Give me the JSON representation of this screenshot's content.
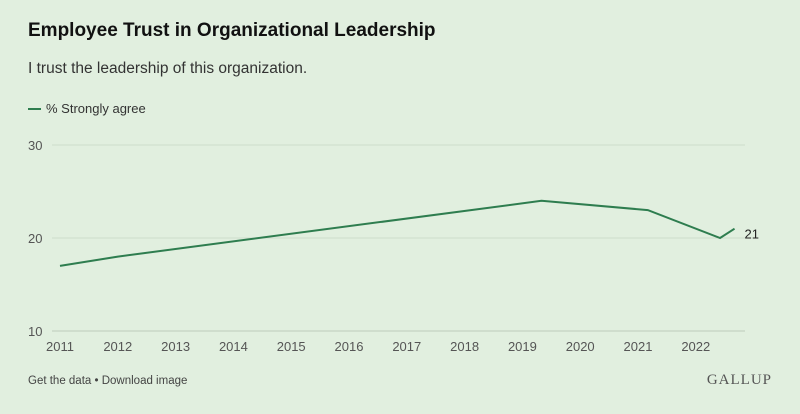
{
  "chart_data": {
    "type": "line",
    "title": "Employee Trust in Organizational Leadership",
    "subtitle": "I trust the leadership of this organization.",
    "xlabel": "",
    "ylabel": "",
    "xlim": [
      2011,
      2022.8
    ],
    "ylim": [
      10,
      30
    ],
    "y_ticks": [
      10,
      20,
      30
    ],
    "x_ticks": [
      2011,
      2012,
      2013,
      2014,
      2015,
      2016,
      2017,
      2018,
      2019,
      2020,
      2021,
      2022
    ],
    "grid": "horizontal",
    "legend": "top-left",
    "series": [
      {
        "name": "% Strongly agree",
        "color": "#2e7d4f",
        "x": [
          2011,
          2012,
          2019.33,
          2021.17,
          2022.42,
          2022.67
        ],
        "values": [
          17,
          18,
          24,
          23,
          20,
          21
        ],
        "end_label": "21"
      }
    ]
  },
  "footer": {
    "get_data": "Get the data",
    "separator": " • ",
    "download": "Download image"
  },
  "logo": "GALLUP"
}
